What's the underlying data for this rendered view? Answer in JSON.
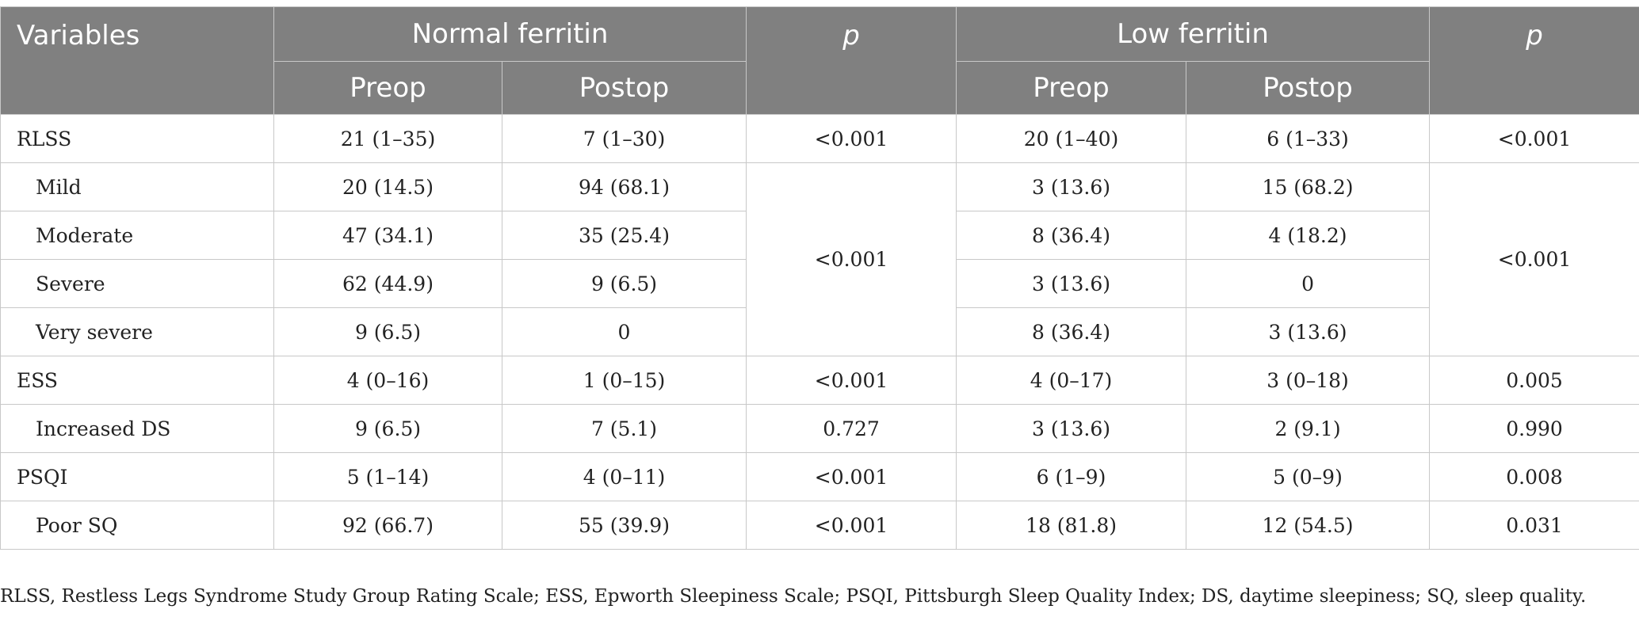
{
  "header": {
    "variables": "Variables",
    "normal_ferritin": "Normal ferritin",
    "low_ferritin": "Low ferritin",
    "p": "p",
    "preop": "Preop",
    "postop": "Postop"
  },
  "rows": [
    {
      "label": "RLSS",
      "n_pre": "21 (1–35)",
      "n_post": "7 (1–30)",
      "n_p": "<0.001",
      "l_pre": "20 (1–40)",
      "l_post": "6 (1–33)",
      "l_p": "<0.001"
    },
    {
      "label": "Mild",
      "n_pre": "20 (14.5)",
      "n_post": "94 (68.1)",
      "n_p": "<0.001",
      "l_pre": "3 (13.6)",
      "l_post": "15 (68.2)",
      "l_p": "<0.001"
    },
    {
      "label": "Moderate",
      "n_pre": "47 (34.1)",
      "n_post": "35 (25.4)",
      "l_pre": "8 (36.4)",
      "l_post": "4 (18.2)"
    },
    {
      "label": "Severe",
      "n_pre": "62 (44.9)",
      "n_post": "9 (6.5)",
      "l_pre": "3 (13.6)",
      "l_post": "0"
    },
    {
      "label": "Very severe",
      "n_pre": "9 (6.5)",
      "n_post": "0",
      "l_pre": "8 (36.4)",
      "l_post": "3 (13.6)"
    },
    {
      "label": "ESS",
      "n_pre": "4 (0–16)",
      "n_post": "1 (0–15)",
      "n_p": "<0.001",
      "l_pre": "4 (0–17)",
      "l_post": "3 (0–18)",
      "l_p": "0.005"
    },
    {
      "label": "Increased DS",
      "n_pre": "9 (6.5)",
      "n_post": "7 (5.1)",
      "n_p": "0.727",
      "l_pre": "3 (13.6)",
      "l_post": "2 (9.1)",
      "l_p": "0.990"
    },
    {
      "label": "PSQI",
      "n_pre": "5 (1–14)",
      "n_post": "4 (0–11)",
      "n_p": "<0.001",
      "l_pre": "6 (1–9)",
      "l_post": "5 (0–9)",
      "l_p": "0.008"
    },
    {
      "label": "Poor SQ",
      "n_pre": "92 (66.7)",
      "n_post": "55 (39.9)",
      "n_p": "<0.001",
      "l_pre": "18 (81.8)",
      "l_post": "12 (54.5)",
      "l_p": "0.031"
    }
  ],
  "footnote": "RLSS, Restless Legs Syndrome Study Group Rating Scale; ESS, Epworth Sleepiness Scale; PSQI, Pittsburgh Sleep Quality Index; DS, daytime sleepiness; SQ, sleep quality."
}
